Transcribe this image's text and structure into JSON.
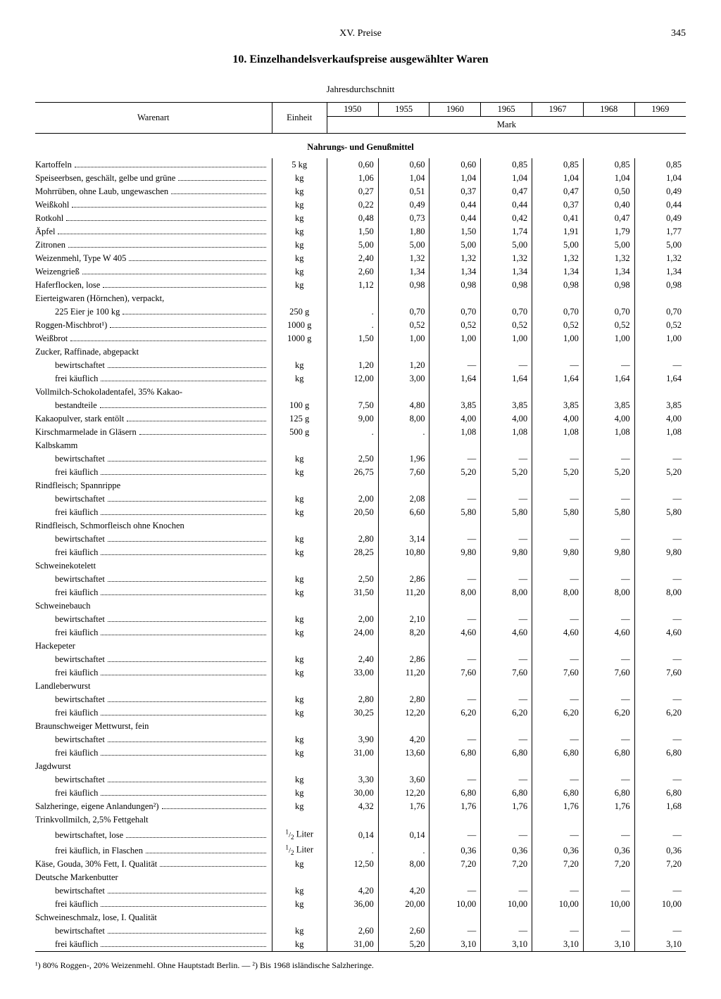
{
  "header": {
    "chapter": "XV. Preise",
    "pageno": "345"
  },
  "title": "10. Einzelhandelsverkaufspreise ausgewählter Waren",
  "subtitle": "Jahresdurchschnitt",
  "col_headers": {
    "ware": "Warenart",
    "einheit": "Einheit",
    "years": [
      "1950",
      "1955",
      "1960",
      "1965",
      "1967",
      "1968",
      "1969"
    ],
    "currency": "Mark"
  },
  "section": "Nahrungs- und Genußmittel",
  "rows": [
    {
      "l": "Kartoffeln",
      "u": "5 kg",
      "v": [
        "0,60",
        "0,60",
        "0,60",
        "0,85",
        "0,85",
        "0,85",
        "0,85"
      ]
    },
    {
      "l": "Speiseerbsen, geschält, gelbe und grüne",
      "u": "kg",
      "v": [
        "1,06",
        "1,04",
        "1,04",
        "1,04",
        "1,04",
        "1,04",
        "1,04"
      ]
    },
    {
      "l": "Mohrrüben, ohne Laub, ungewaschen",
      "u": "kg",
      "v": [
        "0,27",
        "0,51",
        "0,37",
        "0,47",
        "0,47",
        "0,50",
        "0,49"
      ]
    },
    {
      "l": "Weißkohl",
      "u": "kg",
      "v": [
        "0,22",
        "0,49",
        "0,44",
        "0,44",
        "0,37",
        "0,40",
        "0,44"
      ]
    },
    {
      "l": "Rotkohl",
      "u": "kg",
      "v": [
        "0,48",
        "0,73",
        "0,44",
        "0,42",
        "0,41",
        "0,47",
        "0,49"
      ]
    },
    {
      "l": "Äpfel",
      "u": "kg",
      "v": [
        "1,50",
        "1,80",
        "1,50",
        "1,74",
        "1,91",
        "1,79",
        "1,77"
      ]
    },
    {
      "l": "Zitronen",
      "u": "kg",
      "v": [
        "5,00",
        "5,00",
        "5,00",
        "5,00",
        "5,00",
        "5,00",
        "5,00"
      ]
    },
    {
      "l": "Weizenmehl, Type W 405",
      "u": "kg",
      "v": [
        "2,40",
        "1,32",
        "1,32",
        "1,32",
        "1,32",
        "1,32",
        "1,32"
      ]
    },
    {
      "l": "Weizengrieß",
      "u": "kg",
      "v": [
        "2,60",
        "1,34",
        "1,34",
        "1,34",
        "1,34",
        "1,34",
        "1,34"
      ]
    },
    {
      "l": "Haferflocken, lose",
      "u": "kg",
      "v": [
        "1,12",
        "0,98",
        "0,98",
        "0,98",
        "0,98",
        "0,98",
        "0,98"
      ]
    },
    {
      "l": "Eierteigwaren (Hörnchen), verpackt,",
      "nounit": true
    },
    {
      "sub": "225 Eier je 100 kg",
      "u": "250 g",
      "v": [
        ".",
        "0,70",
        "0,70",
        "0,70",
        "0,70",
        "0,70",
        "0,70"
      ]
    },
    {
      "l": "Roggen-Mischbrot¹)",
      "u": "1000 g",
      "v": [
        ".",
        "0,52",
        "0,52",
        "0,52",
        "0,52",
        "0,52",
        "0,52"
      ]
    },
    {
      "l": "Weißbrot",
      "u": "1000 g",
      "v": [
        "1,50",
        "1,00",
        "1,00",
        "1,00",
        "1,00",
        "1,00",
        "1,00"
      ]
    },
    {
      "l": "Zucker, Raffinade, abgepackt",
      "nounit": true
    },
    {
      "sub": "bewirtschaftet",
      "u": "kg",
      "v": [
        "1,20",
        "1,20",
        "—",
        "—",
        "—",
        "—",
        "—"
      ]
    },
    {
      "sub": "frei käuflich",
      "u": "kg",
      "v": [
        "12,00",
        "3,00",
        "1,64",
        "1,64",
        "1,64",
        "1,64",
        "1,64"
      ]
    },
    {
      "l": "Vollmilch-Schokoladentafel, 35% Kakao-",
      "nounit": true
    },
    {
      "sub": "bestandteile",
      "u": "100 g",
      "v": [
        "7,50",
        "4,80",
        "3,85",
        "3,85",
        "3,85",
        "3,85",
        "3,85"
      ]
    },
    {
      "l": "Kakaopulver, stark entölt",
      "u": "125 g",
      "v": [
        "9,00",
        "8,00",
        "4,00",
        "4,00",
        "4,00",
        "4,00",
        "4,00"
      ]
    },
    {
      "l": "Kirschmarmelade in Gläsern",
      "u": "500 g",
      "v": [
        ".",
        ".",
        "1,08",
        "1,08",
        "1,08",
        "1,08",
        "1,08"
      ]
    },
    {
      "l": "Kalbskamm",
      "nounit": true
    },
    {
      "sub": "bewirtschaftet",
      "u": "kg",
      "v": [
        "2,50",
        "1,96",
        "—",
        "—",
        "—",
        "—",
        "—"
      ]
    },
    {
      "sub": "frei käuflich",
      "u": "kg",
      "v": [
        "26,75",
        "7,60",
        "5,20",
        "5,20",
        "5,20",
        "5,20",
        "5,20"
      ]
    },
    {
      "l": "Rindfleisch; Spannrippe",
      "nounit": true
    },
    {
      "sub": "bewirtschaftet",
      "u": "kg",
      "v": [
        "2,00",
        "2,08",
        "—",
        "—",
        "—",
        "—",
        "—"
      ]
    },
    {
      "sub": "frei käuflich",
      "u": "kg",
      "v": [
        "20,50",
        "6,60",
        "5,80",
        "5,80",
        "5,80",
        "5,80",
        "5,80"
      ]
    },
    {
      "l": "Rindfleisch, Schmorfleisch ohne Knochen",
      "nounit": true
    },
    {
      "sub": "bewirtschaftet",
      "u": "kg",
      "v": [
        "2,80",
        "3,14",
        "—",
        "—",
        "—",
        "—",
        "—"
      ]
    },
    {
      "sub": "frei käuflich",
      "u": "kg",
      "v": [
        "28,25",
        "10,80",
        "9,80",
        "9,80",
        "9,80",
        "9,80",
        "9,80"
      ]
    },
    {
      "l": "Schweinekotelett",
      "nounit": true
    },
    {
      "sub": "bewirtschaftet",
      "u": "kg",
      "v": [
        "2,50",
        "2,86",
        "—",
        "—",
        "—",
        "—",
        "—"
      ]
    },
    {
      "sub": "frei käuflich",
      "u": "kg",
      "v": [
        "31,50",
        "11,20",
        "8,00",
        "8,00",
        "8,00",
        "8,00",
        "8,00"
      ]
    },
    {
      "l": "Schweinebauch",
      "nounit": true
    },
    {
      "sub": "bewirtschaftet",
      "u": "kg",
      "v": [
        "2,00",
        "2,10",
        "—",
        "—",
        "—",
        "—",
        "—"
      ]
    },
    {
      "sub": "frei käuflich",
      "u": "kg",
      "v": [
        "24,00",
        "8,20",
        "4,60",
        "4,60",
        "4,60",
        "4,60",
        "4,60"
      ]
    },
    {
      "l": "Hackepeter",
      "nounit": true
    },
    {
      "sub": "bewirtschaftet",
      "u": "kg",
      "v": [
        "2,40",
        "2,86",
        "—",
        "—",
        "—",
        "—",
        "—"
      ]
    },
    {
      "sub": "frei käuflich",
      "u": "kg",
      "v": [
        "33,00",
        "11,20",
        "7,60",
        "7,60",
        "7,60",
        "7,60",
        "7,60"
      ]
    },
    {
      "l": "Landleberwurst",
      "nounit": true
    },
    {
      "sub": "bewirtschaftet",
      "u": "kg",
      "v": [
        "2,80",
        "2,80",
        "—",
        "—",
        "—",
        "—",
        "—"
      ]
    },
    {
      "sub": "frei käuflich",
      "u": "kg",
      "v": [
        "30,25",
        "12,20",
        "6,20",
        "6,20",
        "6,20",
        "6,20",
        "6,20"
      ]
    },
    {
      "l": "Braunschweiger Mettwurst, fein",
      "nounit": true
    },
    {
      "sub": "bewirtschaftet",
      "u": "kg",
      "v": [
        "3,90",
        "4,20",
        "—",
        "—",
        "—",
        "—",
        "—"
      ]
    },
    {
      "sub": "frei käuflich",
      "u": "kg",
      "v": [
        "31,00",
        "13,60",
        "6,80",
        "6,80",
        "6,80",
        "6,80",
        "6,80"
      ]
    },
    {
      "l": "Jagdwurst",
      "nounit": true
    },
    {
      "sub": "bewirtschaftet",
      "u": "kg",
      "v": [
        "3,30",
        "3,60",
        "—",
        "—",
        "—",
        "—",
        "—"
      ]
    },
    {
      "sub": "frei käuflich",
      "u": "kg",
      "v": [
        "30,00",
        "12,20",
        "6,80",
        "6,80",
        "6,80",
        "6,80",
        "6,80"
      ]
    },
    {
      "l": "Salzheringe, eigene Anlandungen²)",
      "u": "kg",
      "v": [
        "4,32",
        "1,76",
        "1,76",
        "1,76",
        "1,76",
        "1,76",
        "1,68"
      ]
    },
    {
      "l": "Trinkvollmilch, 2,5% Fettgehalt",
      "nounit": true
    },
    {
      "sub": "bewirtschaftet, lose",
      "u": "½ Liter",
      "v": [
        "0,14",
        "0,14",
        "—",
        "—",
        "—",
        "—",
        "—"
      ]
    },
    {
      "sub": "frei käuflich, in Flaschen",
      "u": "½ Liter",
      "v": [
        ".",
        ".",
        "0,36",
        "0,36",
        "0,36",
        "0,36",
        "0,36"
      ]
    },
    {
      "l": "Käse, Gouda, 30% Fett, I. Qualität",
      "u": "kg",
      "v": [
        "12,50",
        "8,00",
        "7,20",
        "7,20",
        "7,20",
        "7,20",
        "7,20"
      ]
    },
    {
      "l": "Deutsche Markenbutter",
      "nounit": true
    },
    {
      "sub": "bewirtschaftet",
      "u": "kg",
      "v": [
        "4,20",
        "4,20",
        "—",
        "—",
        "—",
        "—",
        "—"
      ]
    },
    {
      "sub": "frei käuflich",
      "u": "kg",
      "v": [
        "36,00",
        "20,00",
        "10,00",
        "10,00",
        "10,00",
        "10,00",
        "10,00"
      ]
    },
    {
      "l": "Schweineschmalz, lose, I. Qualität",
      "nounit": true
    },
    {
      "sub": "bewirtschaftet",
      "u": "kg",
      "v": [
        "2,60",
        "2,60",
        "—",
        "—",
        "—",
        "—",
        "—"
      ]
    },
    {
      "sub": "frei käuflich",
      "u": "kg",
      "v": [
        "31,00",
        "5,20",
        "3,10",
        "3,10",
        "3,10",
        "3,10",
        "3,10"
      ]
    }
  ],
  "footnote": "¹) 80% Roggen-, 20% Weizenmehl. Ohne Hauptstadt Berlin. — ²) Bis 1968 isländische Salzheringe.",
  "colwidths": [
    "300px",
    "70px",
    "65px",
    "65px",
    "65px",
    "65px",
    "65px",
    "65px",
    "65px"
  ],
  "colors": {
    "text": "#000000",
    "bg": "#ffffff",
    "rule": "#000000"
  }
}
